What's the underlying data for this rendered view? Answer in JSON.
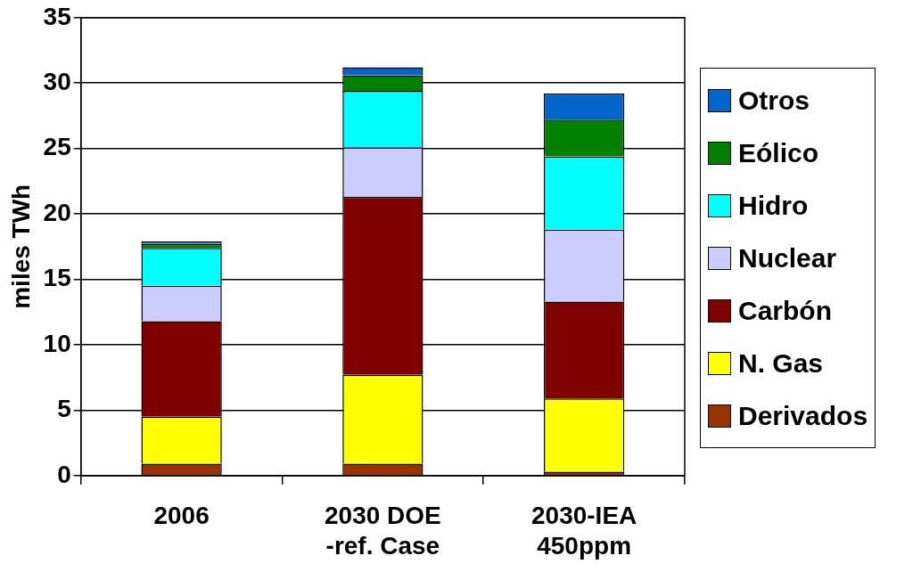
{
  "chart_data": {
    "type": "bar",
    "stacked": true,
    "ylabel": "miles TWh",
    "categories": [
      "2006",
      "2030 DOE\n-ref. Case",
      "2030-IEA\n450ppm"
    ],
    "ylim": [
      0,
      35
    ],
    "yticks": [
      0,
      5,
      10,
      15,
      20,
      25,
      30,
      35
    ],
    "grid": "y",
    "legend": "right",
    "series": [
      {
        "name": "Derivados",
        "color": "#993300",
        "values": [
          0.9,
          0.9,
          0.3
        ]
      },
      {
        "name": "N. Gas",
        "color": "#ffff00",
        "values": [
          3.6,
          6.8,
          5.6
        ]
      },
      {
        "name": "Carbón",
        "color": "#800000",
        "values": [
          7.3,
          13.6,
          7.4
        ]
      },
      {
        "name": "Nuclear",
        "color": "#ccccff",
        "values": [
          2.7,
          3.8,
          5.5
        ]
      },
      {
        "name": "Hidro",
        "color": "#00ffff",
        "values": [
          2.9,
          4.3,
          5.6
        ]
      },
      {
        "name": "Eólico",
        "color": "#008000",
        "values": [
          0.3,
          1.2,
          2.8
        ]
      },
      {
        "name": "Otros",
        "color": "#0066cc",
        "values": [
          0.2,
          0.6,
          2.0
        ]
      }
    ]
  }
}
